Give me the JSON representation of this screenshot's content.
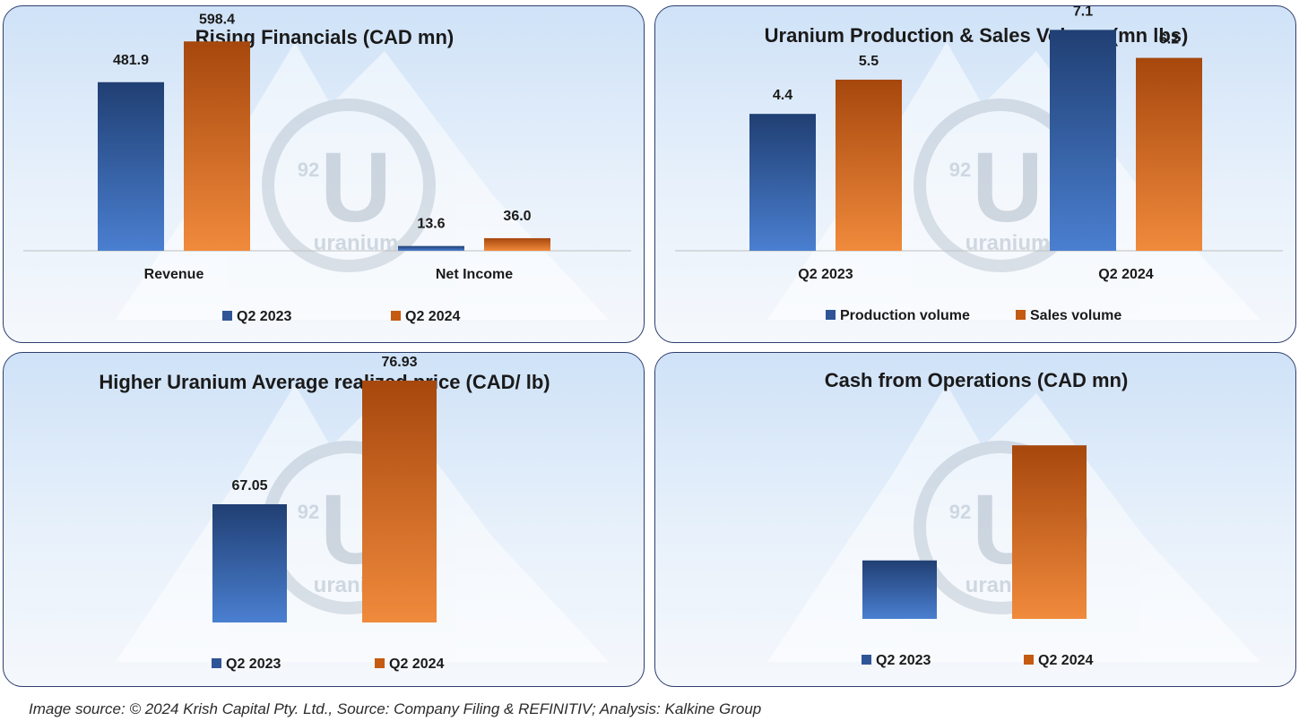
{
  "colors": {
    "q2_2023": "#2f5597",
    "q2_2024": "#c55a11",
    "blue_dark": "#203f73",
    "blue_light": "#4a7fd0",
    "orange_dark": "#a6470d",
    "orange_light": "#f08a3c"
  },
  "watermark": {
    "logo_number": "92",
    "logo_letter": "U",
    "logo_word": "uranium"
  },
  "chart_data": [
    {
      "type": "bar",
      "title": "Rising Financials (CAD mn)",
      "categories": [
        "Revenue",
        "Net Income"
      ],
      "series": [
        {
          "name": "Q2 2023",
          "values": [
            481.9,
            13.6
          ],
          "labels": [
            "481.9",
            "13.6"
          ]
        },
        {
          "name": "Q2 2024",
          "values": [
            598.4,
            36.0
          ],
          "labels": [
            "598.4",
            "36.0"
          ]
        }
      ],
      "legend": "bottom",
      "grid": false,
      "ylim": [
        0,
        640
      ]
    },
    {
      "type": "bar",
      "title": "Uranium Production & Sales Volume (mn lbs)",
      "categories": [
        "Q2 2023",
        "Q2 2024"
      ],
      "series": [
        {
          "name": "Production volume",
          "values": [
            4.4,
            7.1
          ],
          "labels": [
            "4.4",
            "7.1"
          ]
        },
        {
          "name": "Sales volume",
          "values": [
            5.5,
            6.2
          ],
          "labels": [
            "5.5",
            "6.2"
          ]
        }
      ],
      "legend": "bottom",
      "grid": false,
      "ylim": [
        0,
        7.6
      ]
    },
    {
      "type": "bar",
      "title": "Higher Uranium Average realized price (CAD/ lb)",
      "categories": [
        ""
      ],
      "series": [
        {
          "name": "Q2 2023",
          "values": [
            67.05
          ],
          "labels": [
            "67.05"
          ]
        },
        {
          "name": "Q2 2024",
          "values": [
            76.93
          ],
          "labels": [
            "76.93"
          ]
        }
      ],
      "legend": "bottom",
      "grid": false,
      "ylim": [
        57.6,
        78.5
      ]
    },
    {
      "type": "bar",
      "title": "Cash from Operations (CAD mn)",
      "categories": [
        ""
      ],
      "series": [
        {
          "name": "Q2 2023",
          "values": [
            64
          ],
          "labels": [
            ""
          ]
        },
        {
          "name": "Q2 2024",
          "values": [
            190
          ],
          "labels": [
            ""
          ]
        }
      ],
      "legend": "bottom",
      "grid": false,
      "ylim": [
        0,
        200
      ]
    }
  ],
  "footer": "Image source: © 2024 Krish Capital Pty. Ltd., Source: Company Filing & REFINITIV; Analysis: Kalkine Group"
}
